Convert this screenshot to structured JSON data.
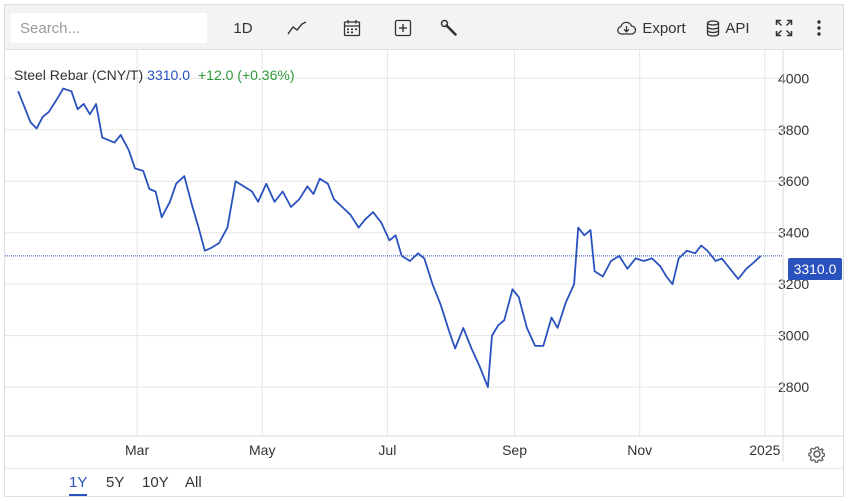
{
  "toolbar": {
    "search_placeholder": "Search...",
    "interval_label": "1D",
    "export_label": "Export",
    "api_label": "API",
    "icons": [
      "line-chart-icon",
      "calendar-icon",
      "plus-box-icon",
      "wrench-icon",
      "cloud-download-icon",
      "database-icon",
      "fullscreen-icon",
      "more-vertical-icon"
    ]
  },
  "legend": {
    "name": "Steel Rebar (CNY/T)",
    "price": "3310.0",
    "change": "+12.0 (+0.36%)"
  },
  "price_tag": "3310.0",
  "ranges": [
    {
      "label": "1Y",
      "active": true
    },
    {
      "label": "5Y",
      "active": false
    },
    {
      "label": "10Y",
      "active": false
    },
    {
      "label": "All",
      "active": false
    }
  ],
  "colors": {
    "series": "#2a52be",
    "change_positive": "#2e9a3a",
    "toolbar_bg": "#f3f3f3",
    "grid": "#e6e6e6"
  },
  "chart_data": {
    "type": "line",
    "title": "Steel Rebar (CNY/T)",
    "series": [
      {
        "name": "Steel Rebar (CNY/T)",
        "points": [
          [
            "2024-01-03",
            3950
          ],
          [
            "2024-01-06",
            3890
          ],
          [
            "2024-01-09",
            3830
          ],
          [
            "2024-01-12",
            3805
          ],
          [
            "2024-01-15",
            3850
          ],
          [
            "2024-01-18",
            3870
          ],
          [
            "2024-01-22",
            3920
          ],
          [
            "2024-01-25",
            3960
          ],
          [
            "2024-01-29",
            3950
          ],
          [
            "2024-02-01",
            3880
          ],
          [
            "2024-02-04",
            3900
          ],
          [
            "2024-02-07",
            3860
          ],
          [
            "2024-02-10",
            3900
          ],
          [
            "2024-02-13",
            3770
          ],
          [
            "2024-02-16",
            3760
          ],
          [
            "2024-02-19",
            3750
          ],
          [
            "2024-02-22",
            3780
          ],
          [
            "2024-02-26",
            3720
          ],
          [
            "2024-02-29",
            3650
          ],
          [
            "2024-03-04",
            3640
          ],
          [
            "2024-03-07",
            3570
          ],
          [
            "2024-03-10",
            3560
          ],
          [
            "2024-03-13",
            3460
          ],
          [
            "2024-03-17",
            3520
          ],
          [
            "2024-03-20",
            3590
          ],
          [
            "2024-03-24",
            3620
          ],
          [
            "2024-03-28",
            3500
          ],
          [
            "2024-03-31",
            3420
          ],
          [
            "2024-04-03",
            3330
          ],
          [
            "2024-04-06",
            3340
          ],
          [
            "2024-04-10",
            3360
          ],
          [
            "2024-04-14",
            3420
          ],
          [
            "2024-04-18",
            3600
          ],
          [
            "2024-04-22",
            3580
          ],
          [
            "2024-04-26",
            3560
          ],
          [
            "2024-04-29",
            3520
          ],
          [
            "2024-05-03",
            3590
          ],
          [
            "2024-05-07",
            3520
          ],
          [
            "2024-05-11",
            3560
          ],
          [
            "2024-05-15",
            3500
          ],
          [
            "2024-05-19",
            3530
          ],
          [
            "2024-05-23",
            3580
          ],
          [
            "2024-05-26",
            3550
          ],
          [
            "2024-05-29",
            3610
          ],
          [
            "2024-06-02",
            3590
          ],
          [
            "2024-06-05",
            3530
          ],
          [
            "2024-06-09",
            3500
          ],
          [
            "2024-06-13",
            3470
          ],
          [
            "2024-06-17",
            3420
          ],
          [
            "2024-06-20",
            3450
          ],
          [
            "2024-06-24",
            3480
          ],
          [
            "2024-06-28",
            3440
          ],
          [
            "2024-07-02",
            3370
          ],
          [
            "2024-07-05",
            3390
          ],
          [
            "2024-07-08",
            3310
          ],
          [
            "2024-07-12",
            3290
          ],
          [
            "2024-07-16",
            3320
          ],
          [
            "2024-07-19",
            3300
          ],
          [
            "2024-07-23",
            3200
          ],
          [
            "2024-07-27",
            3120
          ],
          [
            "2024-07-31",
            3020
          ],
          [
            "2024-08-03",
            2950
          ],
          [
            "2024-08-07",
            3030
          ],
          [
            "2024-08-11",
            2950
          ],
          [
            "2024-08-15",
            2880
          ],
          [
            "2024-08-19",
            2800
          ],
          [
            "2024-08-21",
            3000
          ],
          [
            "2024-08-24",
            3040
          ],
          [
            "2024-08-27",
            3060
          ],
          [
            "2024-08-31",
            3180
          ],
          [
            "2024-09-03",
            3150
          ],
          [
            "2024-09-07",
            3030
          ],
          [
            "2024-09-11",
            2960
          ],
          [
            "2024-09-15",
            2960
          ],
          [
            "2024-09-19",
            3070
          ],
          [
            "2024-09-22",
            3030
          ],
          [
            "2024-09-26",
            3130
          ],
          [
            "2024-09-30",
            3200
          ],
          [
            "2024-10-02",
            3420
          ],
          [
            "2024-10-05",
            3390
          ],
          [
            "2024-10-08",
            3410
          ],
          [
            "2024-10-10",
            3250
          ],
          [
            "2024-10-14",
            3230
          ],
          [
            "2024-10-18",
            3290
          ],
          [
            "2024-10-22",
            3310
          ],
          [
            "2024-10-26",
            3260
          ],
          [
            "2024-10-30",
            3300
          ],
          [
            "2024-11-03",
            3290
          ],
          [
            "2024-11-07",
            3300
          ],
          [
            "2024-11-11",
            3270
          ],
          [
            "2024-11-14",
            3230
          ],
          [
            "2024-11-17",
            3200
          ],
          [
            "2024-11-20",
            3300
          ],
          [
            "2024-11-24",
            3330
          ],
          [
            "2024-11-28",
            3320
          ],
          [
            "2024-12-01",
            3350
          ],
          [
            "2024-12-04",
            3330
          ],
          [
            "2024-12-08",
            3290
          ],
          [
            "2024-12-11",
            3300
          ],
          [
            "2024-12-15",
            3260
          ],
          [
            "2024-12-19",
            3220
          ],
          [
            "2024-12-23",
            3260
          ],
          [
            "2024-12-26",
            3280
          ],
          [
            "2024-12-30",
            3310
          ]
        ]
      }
    ],
    "x_ticks": [
      {
        "date": "2024-03-01",
        "label": "Mar"
      },
      {
        "date": "2024-05-01",
        "label": "May"
      },
      {
        "date": "2024-07-01",
        "label": "Jul"
      },
      {
        "date": "2024-09-01",
        "label": "Sep"
      },
      {
        "date": "2024-11-01",
        "label": "Nov"
      },
      {
        "date": "2025-01-01",
        "label": "2025"
      }
    ],
    "y_ticks": [
      2800,
      3000,
      3200,
      3400,
      3600,
      3800,
      4000
    ],
    "x_range": [
      "2024-01-01",
      "2025-01-04"
    ],
    "y_range": [
      2610,
      4110
    ],
    "last_value": 3310.0,
    "y_axis_position": "right",
    "grid": true
  }
}
